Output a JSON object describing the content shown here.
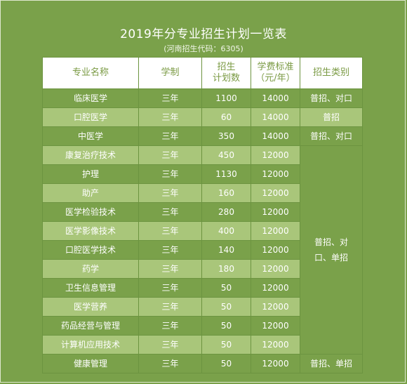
{
  "title": "2019年分专业招生计划一览表",
  "subtitle": "(河南招生代码：6305)",
  "headers": {
    "major": "专业名称",
    "duration": "学制",
    "plan_line1": "招生",
    "plan_line2": "计划数",
    "fee_line1": "学费标准",
    "fee_line2": "（元/年）",
    "type": "招生类别"
  },
  "rows": [
    {
      "major": "临床医学",
      "duration": "三年",
      "plan": "1100",
      "fee": "14000",
      "type": "普招、对口"
    },
    {
      "major": "口腔医学",
      "duration": "三年",
      "plan": "60",
      "fee": "14000",
      "type": "普招"
    },
    {
      "major": "中医学",
      "duration": "三年",
      "plan": "350",
      "fee": "14000",
      "type": "普招、对口"
    },
    {
      "major": "康复治疗技术",
      "duration": "三年",
      "plan": "450",
      "fee": "12000"
    },
    {
      "major": "护理",
      "duration": "三年",
      "plan": "1130",
      "fee": "12000"
    },
    {
      "major": "助产",
      "duration": "三年",
      "plan": "160",
      "fee": "12000"
    },
    {
      "major": "医学检验技术",
      "duration": "三年",
      "plan": "280",
      "fee": "12000"
    },
    {
      "major": "医学影像技术",
      "duration": "三年",
      "plan": "400",
      "fee": "12000"
    },
    {
      "major": "口腔医学技术",
      "duration": "三年",
      "plan": "140",
      "fee": "12000"
    },
    {
      "major": "药学",
      "duration": "三年",
      "plan": "180",
      "fee": "12000"
    },
    {
      "major": "卫生信息管理",
      "duration": "三年",
      "plan": "50",
      "fee": "12000"
    },
    {
      "major": "医学营养",
      "duration": "三年",
      "plan": "50",
      "fee": "12000"
    },
    {
      "major": "药品经营与管理",
      "duration": "三年",
      "plan": "50",
      "fee": "12000"
    },
    {
      "major": "计算机应用技术",
      "duration": "三年",
      "plan": "50",
      "fee": "12000"
    },
    {
      "major": "健康管理",
      "duration": "三年",
      "plan": "50",
      "fee": "12000",
      "type": "普招、单招"
    }
  ],
  "merged_type_line1": "普招、对",
  "merged_type_line2": "口、单招"
}
